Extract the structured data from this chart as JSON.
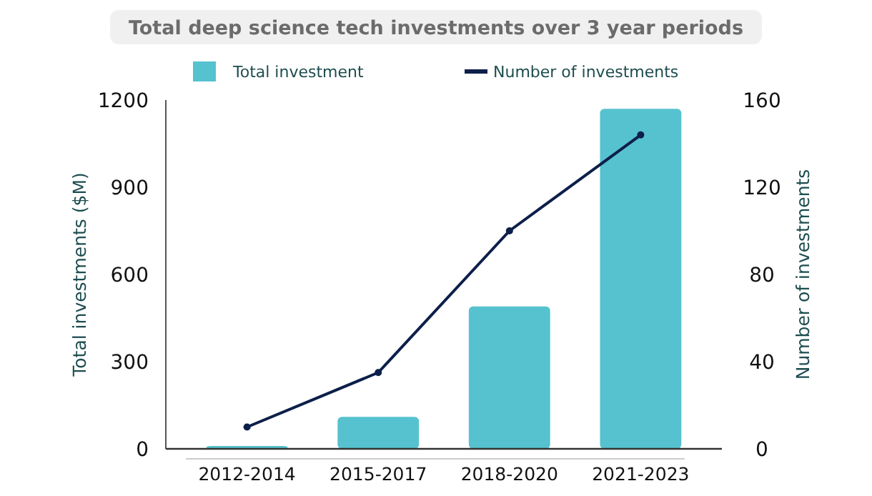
{
  "chart_data": {
    "type": "bar",
    "title": "Total deep science tech investments over 3 year periods",
    "categories": [
      "2012-2014",
      "2015-2017",
      "2018-2020",
      "2021-2023"
    ],
    "series": [
      {
        "name": "Total investment",
        "color": "#56c2cf",
        "values": [
          10,
          110,
          490,
          1170
        ]
      },
      {
        "name": "Number of investments",
        "type": "line",
        "axis": "y2",
        "color": "#0d1f4a",
        "values": [
          10,
          35,
          100,
          144
        ]
      }
    ],
    "ylabel": "Total investments ($M)",
    "y2label": "Number of investments",
    "ylim": [
      0,
      1200
    ],
    "yticks": [
      0,
      300,
      600,
      900,
      1200
    ],
    "y2lim": [
      0,
      160
    ],
    "y2ticks": [
      0,
      40,
      80,
      120,
      160
    ],
    "legend": "top",
    "grid": false,
    "marker": "circle",
    "line_style": "solid"
  }
}
